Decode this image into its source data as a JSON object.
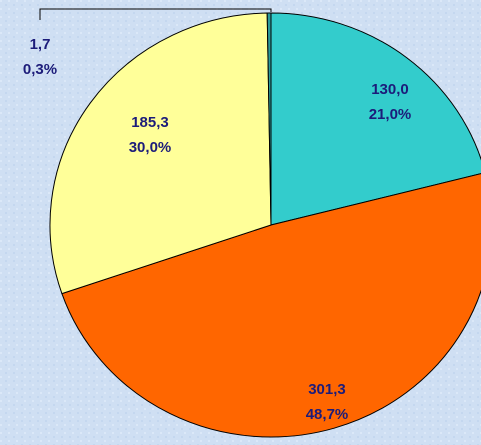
{
  "chart_data": {
    "type": "pie",
    "values": [
      130.0,
      301.3,
      185.3,
      1.7
    ],
    "value_labels": [
      "130,0",
      "301,3",
      "185,3",
      "1,7"
    ],
    "percents": [
      21.0,
      48.7,
      30.0,
      0.3
    ],
    "percent_labels": [
      "21,0%",
      "48,7%",
      "30,0%",
      "0,3%"
    ],
    "colors": [
      "#33cccc",
      "#ff6600",
      "#ffff99",
      "#2a9a9a"
    ]
  }
}
